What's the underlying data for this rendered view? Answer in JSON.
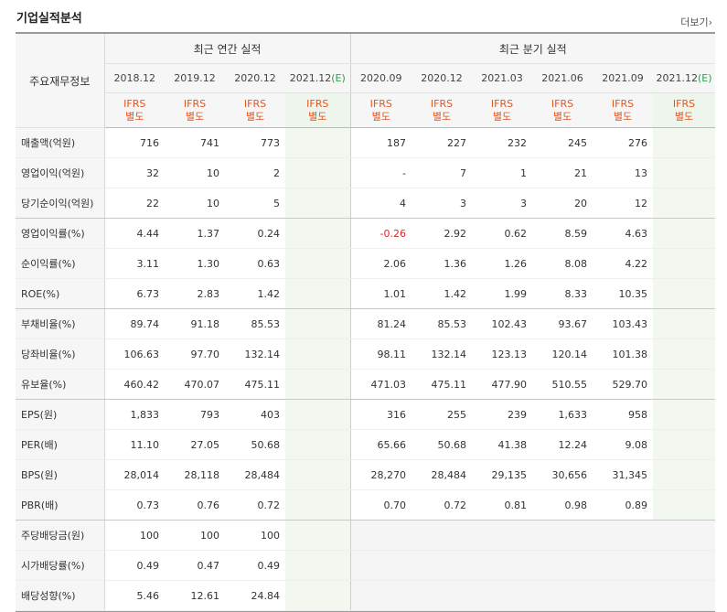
{
  "title": "기업실적분석",
  "more_label": "더보기",
  "table_label": "주요재무정보",
  "annual_header": "최근 연간 실적",
  "quarter_header": "최근 분기 실적",
  "annual_periods": [
    "2018.12",
    "2019.12",
    "2020.12"
  ],
  "annual_estimate": {
    "period": "2021.12",
    "mark": "(E)"
  },
  "quarter_periods": [
    "2020.09",
    "2020.12",
    "2021.03",
    "2021.06",
    "2021.09"
  ],
  "quarter_estimate": {
    "period": "2021.12",
    "mark": "(E)"
  },
  "accounting": {
    "line1": "IFRS",
    "line2": "별도"
  },
  "rows": [
    {
      "label": "매출액(억원)",
      "annual": [
        "716",
        "741",
        "773"
      ],
      "quarter": [
        "187",
        "227",
        "232",
        "245",
        "276"
      ]
    },
    {
      "label": "영업이익(억원)",
      "annual": [
        "32",
        "10",
        "2"
      ],
      "quarter": [
        "-",
        "7",
        "1",
        "21",
        "13"
      ]
    },
    {
      "label": "당기순이익(억원)",
      "annual": [
        "22",
        "10",
        "5"
      ],
      "quarter": [
        "4",
        "3",
        "3",
        "20",
        "12"
      ]
    },
    {
      "label": "영업이익률(%)",
      "annual": [
        "4.44",
        "1.37",
        "0.24"
      ],
      "quarter": [
        "-0.26",
        "2.92",
        "0.62",
        "8.59",
        "4.63"
      ]
    },
    {
      "label": "순이익률(%)",
      "annual": [
        "3.11",
        "1.30",
        "0.63"
      ],
      "quarter": [
        "2.06",
        "1.36",
        "1.26",
        "8.08",
        "4.22"
      ]
    },
    {
      "label": "ROE(%)",
      "annual": [
        "6.73",
        "2.83",
        "1.42"
      ],
      "quarter": [
        "1.01",
        "1.42",
        "1.99",
        "8.33",
        "10.35"
      ]
    },
    {
      "label": "부채비율(%)",
      "annual": [
        "89.74",
        "91.18",
        "85.53"
      ],
      "quarter": [
        "81.24",
        "85.53",
        "102.43",
        "93.67",
        "103.43"
      ]
    },
    {
      "label": "당좌비율(%)",
      "annual": [
        "106.63",
        "97.70",
        "132.14"
      ],
      "quarter": [
        "98.11",
        "132.14",
        "123.13",
        "120.14",
        "101.38"
      ]
    },
    {
      "label": "유보율(%)",
      "annual": [
        "460.42",
        "470.07",
        "475.11"
      ],
      "quarter": [
        "471.03",
        "475.11",
        "477.90",
        "510.55",
        "529.70"
      ]
    },
    {
      "label": "EPS(원)",
      "annual": [
        "1,833",
        "793",
        "403"
      ],
      "quarter": [
        "316",
        "255",
        "239",
        "1,633",
        "958"
      ]
    },
    {
      "label": "PER(배)",
      "annual": [
        "11.10",
        "27.05",
        "50.68"
      ],
      "quarter": [
        "65.66",
        "50.68",
        "41.38",
        "12.24",
        "9.08"
      ]
    },
    {
      "label": "BPS(원)",
      "annual": [
        "28,014",
        "28,118",
        "28,484"
      ],
      "quarter": [
        "28,270",
        "28,484",
        "29,135",
        "30,656",
        "31,345"
      ]
    },
    {
      "label": "PBR(배)",
      "annual": [
        "0.73",
        "0.76",
        "0.72"
      ],
      "quarter": [
        "0.70",
        "0.72",
        "0.81",
        "0.98",
        "0.89"
      ]
    },
    {
      "label": "주당배당금(원)",
      "annual": [
        "100",
        "100",
        "100"
      ],
      "quarter": [
        "",
        "",
        "",
        "",
        ""
      ]
    },
    {
      "label": "시가배당률(%)",
      "annual": [
        "0.49",
        "0.47",
        "0.49"
      ],
      "quarter": [
        "",
        "",
        "",
        "",
        ""
      ]
    },
    {
      "label": "배당성향(%)",
      "annual": [
        "5.46",
        "12.61",
        "24.84"
      ],
      "quarter": [
        "",
        "",
        "",
        "",
        ""
      ]
    }
  ]
}
